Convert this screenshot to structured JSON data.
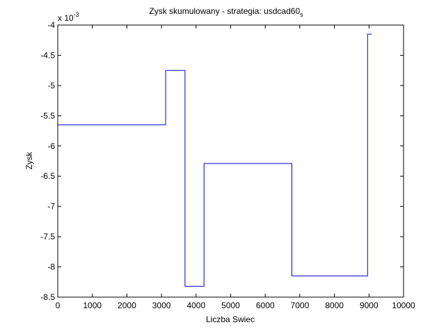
{
  "chart_data": {
    "type": "line",
    "title": "Zysk skumulowany - strategia: usdcad60",
    "title_subscript": "s",
    "xlabel": "Liczba Swiec",
    "ylabel": "Zysk",
    "exponent_label": "x 10",
    "exponent_power": "-3",
    "xlim": [
      0,
      10000
    ],
    "ylim": [
      -8.5,
      -4.0
    ],
    "y_scale_note": "values shown in units of 1e-3",
    "grid": false,
    "legend": "none",
    "xticks": [
      0,
      1000,
      2000,
      3000,
      4000,
      5000,
      6000,
      7000,
      8000,
      9000,
      10000
    ],
    "xtick_labels": [
      "0",
      "1000",
      "2000",
      "3000",
      "4000",
      "5000",
      "6000",
      "7000",
      "8000",
      "9000",
      "10000"
    ],
    "yticks": [
      -8.5,
      -8.0,
      -7.5,
      -7.0,
      -6.5,
      -6.0,
      -5.5,
      -5.0,
      -4.5,
      -4.0
    ],
    "ytick_labels": [
      "-8.5",
      "-8",
      "-7.5",
      "-7",
      "-6.5",
      "-6",
      "-5.5",
      "-5",
      "-4.5",
      "-4"
    ],
    "series": [
      {
        "color": "#0000cc",
        "step": true,
        "x": [
          0,
          3120,
          3120,
          3680,
          3680,
          4230,
          4230,
          6770,
          6770,
          8960,
          8960,
          9080
        ],
        "y": [
          -5.65,
          -5.65,
          -4.75,
          -4.75,
          -8.32,
          -8.32,
          -6.29,
          -6.29,
          -8.15,
          -8.15,
          -4.15,
          -4.15
        ]
      }
    ]
  }
}
